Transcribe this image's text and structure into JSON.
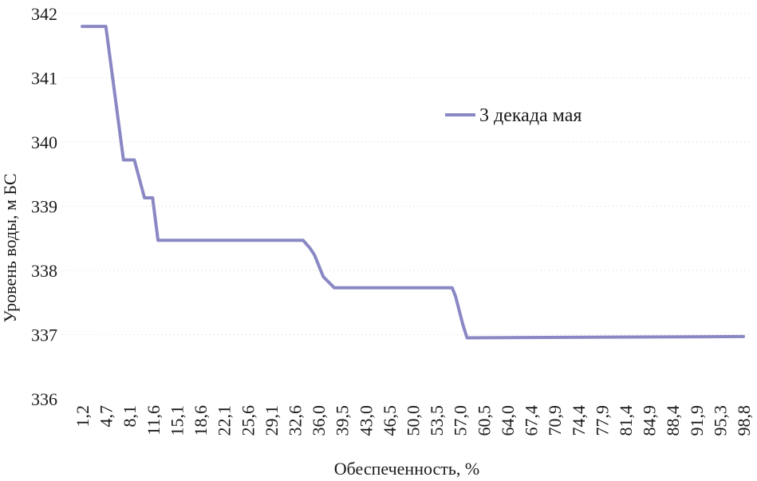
{
  "chart_data": {
    "type": "line",
    "xlabel": "Обеспеченность, %",
    "ylabel": "Уровень воды, м БС",
    "ylim": [
      336,
      342
    ],
    "yticks": [
      "336",
      "337",
      "338",
      "339",
      "340",
      "341",
      "342"
    ],
    "categories": [
      "1,2",
      "4,7",
      "8,1",
      "11,6",
      "15,1",
      "18,6",
      "22,1",
      "25,6",
      "29,1",
      "32,6",
      "36,0",
      "39,5",
      "43,0",
      "46,5",
      "50,0",
      "53,5",
      "57,0",
      "60,5",
      "64,0",
      "67,4",
      "70,9",
      "74,4",
      "77,9",
      "81,4",
      "84,9",
      "88,4",
      "91,9",
      "95,3",
      "98,8"
    ],
    "grid": true,
    "legend_position": "right",
    "series": [
      {
        "name": "3 декада мая",
        "color": "#8a88c4",
        "x": [
          1.2,
          4.4,
          4.7,
          7.3,
          8.1,
          8.9,
          10.4,
          11.6,
          12.4,
          33.8,
          34.8,
          35.5,
          36.8,
          38.4,
          39.0,
          54.0,
          54.8,
          55.8,
          56.3,
          57.4,
          58.0,
          98.8
        ],
        "values": [
          341.8,
          341.8,
          341.8,
          339.72,
          339.72,
          339.72,
          339.13,
          339.13,
          338.47,
          338.47,
          338.35,
          338.24,
          337.9,
          337.73,
          337.73,
          337.73,
          337.73,
          337.73,
          337.6,
          337.15,
          336.95,
          336.97
        ]
      }
    ]
  }
}
